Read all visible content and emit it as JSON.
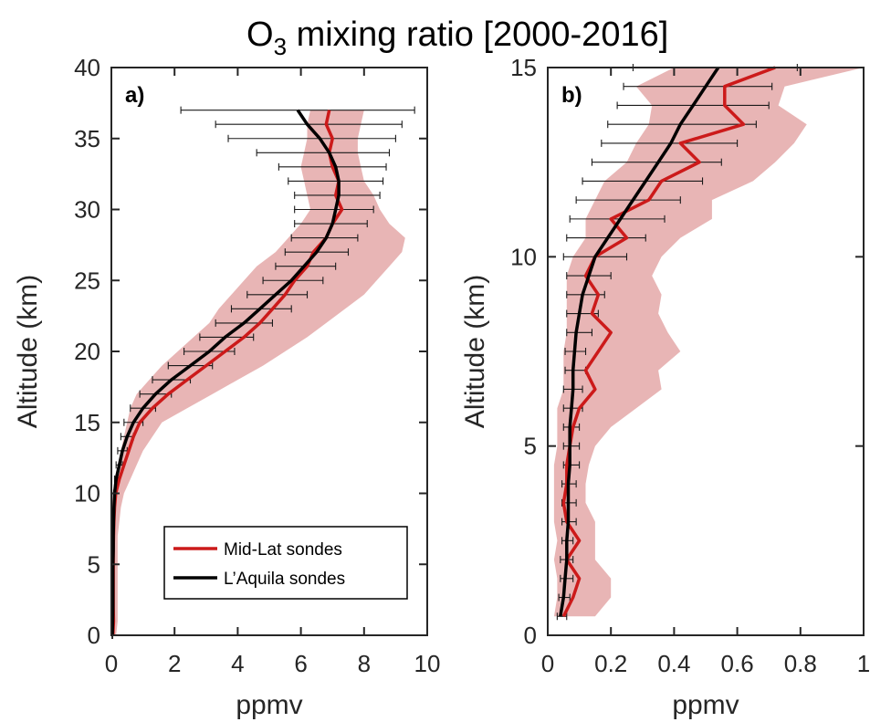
{
  "title": {
    "main": "O",
    "sub": "3",
    "rest": " mixing ratio [2000-2016]"
  },
  "colors": {
    "midlat": "#cc1a1a",
    "aquila": "#000000",
    "band": "#e2a2a2",
    "errbar": "#1a1a1a",
    "axis": "#262626"
  },
  "chart_data": [
    {
      "type": "line",
      "panel_label": "a)",
      "xlabel": "ppmv",
      "ylabel": "Altitude (km)",
      "xlim": [
        0,
        10
      ],
      "ylim": [
        0,
        40
      ],
      "xticks": [
        "0",
        "2",
        "4",
        "6",
        "8",
        "10"
      ],
      "yticks": [
        "0",
        "5",
        "10",
        "15",
        "20",
        "25",
        "30",
        "35",
        "40"
      ],
      "legend": {
        "placement": "lower-right",
        "entries": [
          "Mid-Lat sondes",
          "L’Aquila sondes"
        ]
      },
      "series": [
        {
          "name": "Mid-Lat sondes",
          "altitude": [
            0,
            1,
            2,
            3,
            4,
            5,
            6,
            7,
            8,
            9,
            10,
            11,
            12,
            13,
            14,
            15,
            16,
            17,
            18,
            19,
            20,
            21,
            22,
            23,
            24,
            25,
            26,
            27,
            28,
            29,
            30,
            31,
            32,
            33,
            34,
            35,
            36,
            37
          ],
          "values": [
            0.05,
            0.07,
            0.06,
            0.06,
            0.06,
            0.06,
            0.06,
            0.07,
            0.08,
            0.1,
            0.14,
            0.25,
            0.4,
            0.55,
            0.7,
            0.9,
            1.3,
            1.8,
            2.4,
            3.0,
            3.6,
            4.2,
            4.7,
            5.1,
            5.5,
            5.8,
            6.2,
            6.4,
            6.8,
            7.0,
            7.3,
            7.1,
            7.2,
            7.0,
            6.9,
            7.0,
            6.8,
            6.9
          ],
          "band_low": [
            0.0,
            0.0,
            0.0,
            0.0,
            0.0,
            0.0,
            0.0,
            0.0,
            0.0,
            0.02,
            0.05,
            0.1,
            0.2,
            0.3,
            0.4,
            0.5,
            0.6,
            0.8,
            1.2,
            1.6,
            2.1,
            2.6,
            3.1,
            3.4,
            3.8,
            4.2,
            4.6,
            5.2,
            5.6,
            6.0,
            6.3,
            6.2,
            6.1,
            6.0,
            6.1,
            6.2,
            6.2,
            6.3
          ],
          "band_high": [
            0.15,
            0.2,
            0.2,
            0.2,
            0.2,
            0.2,
            0.2,
            0.2,
            0.25,
            0.3,
            0.4,
            0.6,
            0.8,
            1.0,
            1.3,
            1.6,
            2.4,
            3.2,
            4.0,
            4.8,
            5.5,
            6.2,
            6.8,
            7.4,
            8.0,
            8.4,
            8.8,
            9.2,
            9.3,
            8.8,
            8.5,
            8.3,
            8.0,
            7.9,
            7.8,
            7.8,
            7.9,
            8.0
          ]
        },
        {
          "name": "L’Aquila sondes",
          "altitude": [
            0,
            1,
            2,
            3,
            4,
            5,
            6,
            7,
            8,
            9,
            10,
            11,
            12,
            13,
            14,
            15,
            16,
            17,
            18,
            19,
            20,
            21,
            22,
            23,
            24,
            25,
            26,
            27,
            28,
            29,
            30,
            31,
            32,
            33,
            34,
            35,
            36,
            37
          ],
          "values": [
            0.03,
            0.04,
            0.05,
            0.05,
            0.05,
            0.05,
            0.06,
            0.06,
            0.07,
            0.08,
            0.1,
            0.15,
            0.25,
            0.35,
            0.5,
            0.7,
            1.0,
            1.4,
            1.9,
            2.5,
            3.1,
            3.6,
            4.2,
            4.7,
            5.2,
            5.7,
            6.1,
            6.5,
            6.8,
            7.0,
            7.1,
            7.2,
            7.2,
            7.1,
            6.9,
            6.6,
            6.2,
            5.9
          ],
          "err_low": [
            0.02,
            0.03,
            0.03,
            0.03,
            0.03,
            0.04,
            0.04,
            0.04,
            0.05,
            0.06,
            0.07,
            0.1,
            0.15,
            0.2,
            0.3,
            0.4,
            0.6,
            0.9,
            1.3,
            1.8,
            2.3,
            2.8,
            3.3,
            3.8,
            4.3,
            4.8,
            5.2,
            5.5,
            5.7,
            5.8,
            5.8,
            5.8,
            5.6,
            5.3,
            4.6,
            3.7,
            3.3,
            2.2
          ],
          "err_high": [
            0.04,
            0.05,
            0.07,
            0.07,
            0.07,
            0.07,
            0.08,
            0.08,
            0.09,
            0.1,
            0.14,
            0.2,
            0.35,
            0.5,
            0.7,
            1.0,
            1.4,
            1.9,
            2.5,
            3.2,
            3.9,
            4.5,
            5.1,
            5.7,
            6.2,
            6.7,
            7.1,
            7.5,
            7.8,
            8.1,
            8.3,
            8.5,
            8.6,
            8.7,
            8.8,
            9.0,
            9.2,
            9.6
          ]
        }
      ]
    },
    {
      "type": "line",
      "panel_label": "b)",
      "xlabel": "ppmv",
      "ylabel": "Altitude (km)",
      "xlim": [
        0,
        1
      ],
      "ylim": [
        0,
        15
      ],
      "xticks": [
        "0",
        "0.2",
        "0.4",
        "0.6",
        "0.8",
        "1"
      ],
      "yticks": [
        "0",
        "5",
        "10",
        "15"
      ],
      "series": [
        {
          "name": "Mid-Lat sondes",
          "altitude": [
            0.5,
            1,
            1.5,
            2,
            2.5,
            3,
            3.5,
            4,
            4.5,
            5,
            5.5,
            6,
            6.5,
            7,
            7.5,
            8,
            8.5,
            9,
            9.5,
            10,
            10.5,
            11,
            11.5,
            12,
            12.5,
            13,
            13.5,
            14,
            14.5,
            15
          ],
          "values": [
            0.05,
            0.08,
            0.1,
            0.06,
            0.1,
            0.06,
            0.05,
            0.06,
            0.06,
            0.07,
            0.08,
            0.1,
            0.15,
            0.12,
            0.16,
            0.2,
            0.14,
            0.16,
            0.12,
            0.15,
            0.25,
            0.2,
            0.32,
            0.36,
            0.48,
            0.42,
            0.62,
            0.56,
            0.56,
            0.72
          ],
          "band_low": [
            0.02,
            0.03,
            0.03,
            0.02,
            0.03,
            0.02,
            0.02,
            0.02,
            0.02,
            0.03,
            0.03,
            0.03,
            0.05,
            0.05,
            0.05,
            0.06,
            0.06,
            0.06,
            0.06,
            0.08,
            0.12,
            0.12,
            0.15,
            0.18,
            0.25,
            0.28,
            0.32,
            0.33,
            0.28,
            0.4
          ],
          "band_high": [
            0.15,
            0.2,
            0.2,
            0.15,
            0.15,
            0.15,
            0.12,
            0.12,
            0.13,
            0.15,
            0.2,
            0.28,
            0.36,
            0.35,
            0.42,
            0.38,
            0.35,
            0.36,
            0.33,
            0.36,
            0.42,
            0.52,
            0.52,
            0.65,
            0.72,
            0.78,
            0.82,
            0.73,
            0.75,
            1.0
          ]
        },
        {
          "name": "L’Aquila sondes",
          "altitude": [
            0.5,
            1,
            1.5,
            2,
            2.5,
            3,
            3.5,
            4,
            4.5,
            5,
            5.5,
            6,
            6.5,
            7,
            7.5,
            8,
            8.5,
            9,
            9.5,
            10,
            10.5,
            11,
            11.5,
            12,
            12.5,
            13,
            13.5,
            14,
            14.5,
            15
          ],
          "values": [
            0.04,
            0.05,
            0.055,
            0.06,
            0.06,
            0.065,
            0.065,
            0.065,
            0.07,
            0.07,
            0.07,
            0.075,
            0.08,
            0.08,
            0.085,
            0.09,
            0.1,
            0.11,
            0.13,
            0.15,
            0.19,
            0.23,
            0.27,
            0.31,
            0.35,
            0.39,
            0.42,
            0.46,
            0.5,
            0.54
          ],
          "err_low": [
            0.03,
            0.035,
            0.04,
            0.04,
            0.045,
            0.045,
            0.045,
            0.045,
            0.05,
            0.05,
            0.05,
            0.05,
            0.05,
            0.055,
            0.055,
            0.06,
            0.06,
            0.06,
            0.06,
            0.05,
            0.06,
            0.07,
            0.09,
            0.11,
            0.14,
            0.17,
            0.19,
            0.22,
            0.24,
            0.27
          ],
          "err_high": [
            0.06,
            0.07,
            0.08,
            0.08,
            0.08,
            0.09,
            0.09,
            0.09,
            0.1,
            0.1,
            0.1,
            0.11,
            0.11,
            0.12,
            0.12,
            0.14,
            0.16,
            0.18,
            0.2,
            0.25,
            0.31,
            0.37,
            0.42,
            0.49,
            0.55,
            0.6,
            0.66,
            0.7,
            0.71,
            0.79
          ]
        }
      ]
    }
  ]
}
